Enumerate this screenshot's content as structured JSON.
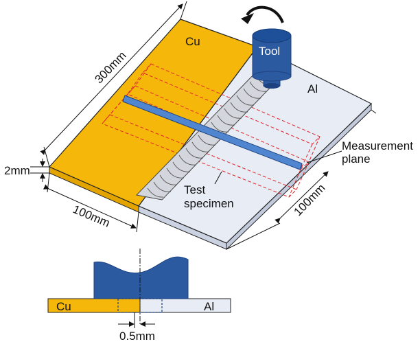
{
  "labels": {
    "top_metal": "Cu",
    "bottom_metal": "Al",
    "tool": "Tool",
    "length": "300mm",
    "thickness": "2mm",
    "width_cu": "100mm",
    "width_al": "100mm",
    "measurement_line1": "Measurement",
    "measurement_line2": "plane",
    "test_line1": "Test",
    "test_line2": "specimen",
    "section_cu": "Cu",
    "section_al": "Al",
    "offset": "0.5mm"
  },
  "colors": {
    "cu": "#F5B70A",
    "cu_side": "#E3A400",
    "al": "#E7ECF5",
    "al_side": "#CBD3E2",
    "tool": "#2C5AA0",
    "tool_dark": "#1E4280",
    "specimen": "#4F86CF",
    "weld": "#D3D6DC",
    "dashed": "#E0262B"
  },
  "icons": {
    "rotation": "rotation-arrow-icon"
  }
}
